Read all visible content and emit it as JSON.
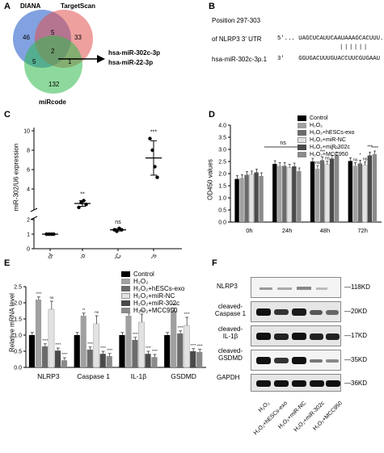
{
  "panels": {
    "A": "A",
    "B": "B",
    "C": "C",
    "D": "D",
    "E": "E",
    "F": "F"
  },
  "venn": {
    "sets": [
      {
        "name": "DIANA",
        "color": "#3f6fd0"
      },
      {
        "name": "TargetScan",
        "color": "#e0524f"
      },
      {
        "name": "miRcode",
        "color": "#2fba4d"
      }
    ],
    "counts": {
      "diana_only": "46",
      "targetscan_only": "33",
      "mircode_only": "132",
      "diana_targetscan": "5",
      "diana_mircode": "5",
      "targetscan_mircode": "1",
      "all": "2"
    },
    "result": [
      "hsa-miR-302c-3p",
      "hsa-miR-22-3p"
    ]
  },
  "binding": {
    "position": "Position 297-303",
    "utr_label": "of NLRP3 3' UTR",
    "utr_seq": "5'... UAGCUCAUUCAAUAAAGCACUUU...3'",
    "pairs": "||||||",
    "mir_label": "hsa-miR-302c-3p.1",
    "mir_seq": "3'    GGUGACUUUGUACCUUCGUGAAU  5'"
  },
  "panel_c": {
    "ylabel": "miR-302/U6 expression",
    "yticks": [
      "0",
      "1",
      "2",
      "4",
      "6",
      "8",
      "10"
    ],
    "categories": [
      "Control",
      "hESCs-exo",
      "miR-302c NC",
      "miR-302c mimics"
    ],
    "sig": [
      "",
      "**",
      "ns",
      "***"
    ]
  },
  "panel_d": {
    "ylabel": "OD450 values",
    "yticks": [
      "0.0",
      "0.5",
      "1.0",
      "1.5",
      "2.0",
      "2.5",
      "3.0",
      "3.5",
      "4.0"
    ],
    "groups": [
      "0h",
      "24h",
      "48h",
      "72h"
    ],
    "legend": [
      "Control",
      "H₂O₂",
      "H₂O₂+hESCs-exo",
      "H₂O₂+miR-NC",
      "H₂O₂+miR-302c",
      "H₂O₂+MCC950"
    ],
    "sig_24": "ns",
    "sig_48": [
      "ns",
      "***",
      "ns",
      "*",
      "**"
    ],
    "sig_72": [
      "ns",
      "*",
      "ns",
      "***",
      "****"
    ]
  },
  "panel_e": {
    "ylabel": "Relative mRNA level",
    "yticks": [
      "0.0",
      "0.5",
      "1.0",
      "1.5",
      "2.0",
      "2.5"
    ],
    "groups": [
      "NLRP3",
      "Caspase 1",
      "IL-1β",
      "GSDMD"
    ],
    "legend": [
      "Control",
      "H₂O₂",
      "H₂O₂+hESCs-exo",
      "H₂O₂+miR-NC",
      "H₂O₂+miR-302c",
      "H₂O₂+MCC950"
    ],
    "sig": [
      [
        "****",
        "****",
        "ns",
        "****",
        "****"
      ],
      [
        "**",
        "****",
        "ns",
        "****",
        "****"
      ],
      [
        "**",
        "****",
        "ns",
        "****",
        "****"
      ],
      [
        "****",
        "****",
        "****",
        "****",
        "****"
      ]
    ]
  },
  "panel_f": {
    "rows": [
      {
        "label": "NLRP3",
        "kd": "118KD"
      },
      {
        "label": "cleaved-\nCaspase 1",
        "kd": "20KD"
      },
      {
        "label": "cleaved-\nIL-1β",
        "kd": "17KD"
      },
      {
        "label": "cleaved-\nGSDMD",
        "kd": "35KD"
      },
      {
        "label": "GAPDH",
        "kd": "36KD"
      }
    ],
    "lanes": [
      "H₂O₂",
      "H₂O₂+hESCs-exo",
      "H₂O₂+miR-NC",
      "H₂O₂+miR-302c",
      "H₂O₂+MCC950"
    ]
  },
  "chart_data": [
    {
      "panel": "C",
      "type": "scatter",
      "categories": [
        "Control",
        "hESCs-exo",
        "miR-302c NC",
        "miR-302c mimics"
      ],
      "series": [
        {
          "values": [
            [
              1,
              1,
              1,
              1
            ],
            [
              2.1,
              2.6,
              2.8,
              2.4
            ],
            [
              1.3,
              1.2,
              1.4,
              1.3
            ],
            [
              9.2,
              8.0,
              6.3,
              5.2
            ]
          ]
        }
      ],
      "means": [
        1.0,
        2.5,
        1.3,
        7.2
      ],
      "ylabel": "miR-302/U6 expression",
      "ylim": [
        0,
        10
      ]
    },
    {
      "panel": "D",
      "type": "bar",
      "categories": [
        "0h",
        "24h",
        "48h",
        "72h"
      ],
      "series": [
        {
          "name": "Control",
          "values": [
            1.78,
            2.4,
            2.5,
            2.52
          ]
        },
        {
          "name": "H₂O₂",
          "values": [
            1.82,
            2.32,
            2.2,
            2.32
          ]
        },
        {
          "name": "H₂O₂+hESCs-exo",
          "values": [
            1.95,
            2.32,
            2.55,
            2.42
          ]
        },
        {
          "name": "H₂O₂+miR-NC",
          "values": [
            1.97,
            2.25,
            2.38,
            2.35
          ]
        },
        {
          "name": "H₂O₂+miR-302c",
          "values": [
            2.05,
            2.3,
            2.62,
            2.75
          ]
        },
        {
          "name": "H₂O₂+MCC950",
          "values": [
            1.9,
            2.1,
            2.75,
            2.8
          ]
        }
      ],
      "ylabel": "OD450 values",
      "ylim": [
        0,
        4
      ]
    },
    {
      "panel": "E",
      "type": "bar",
      "categories": [
        "NLRP3",
        "Caspase 1",
        "IL-1β",
        "GSDMD"
      ],
      "series": [
        {
          "name": "Control",
          "values": [
            1.0,
            1.0,
            1.0,
            1.0
          ]
        },
        {
          "name": "H₂O₂",
          "values": [
            2.1,
            1.6,
            1.6,
            1.75
          ]
        },
        {
          "name": "H₂O₂+hESCs-exo",
          "values": [
            0.65,
            0.55,
            0.85,
            1.05
          ]
        },
        {
          "name": "H₂O₂+miR-NC",
          "values": [
            1.8,
            1.35,
            1.4,
            1.3
          ]
        },
        {
          "name": "H₂O₂+miR-302c",
          "values": [
            0.52,
            0.42,
            0.42,
            0.5
          ]
        },
        {
          "name": "H₂O₂+MCC950",
          "values": [
            0.22,
            0.35,
            0.32,
            0.48
          ]
        }
      ],
      "ylabel": "Relative mRNA level",
      "ylim": [
        0,
        2.5
      ]
    }
  ]
}
